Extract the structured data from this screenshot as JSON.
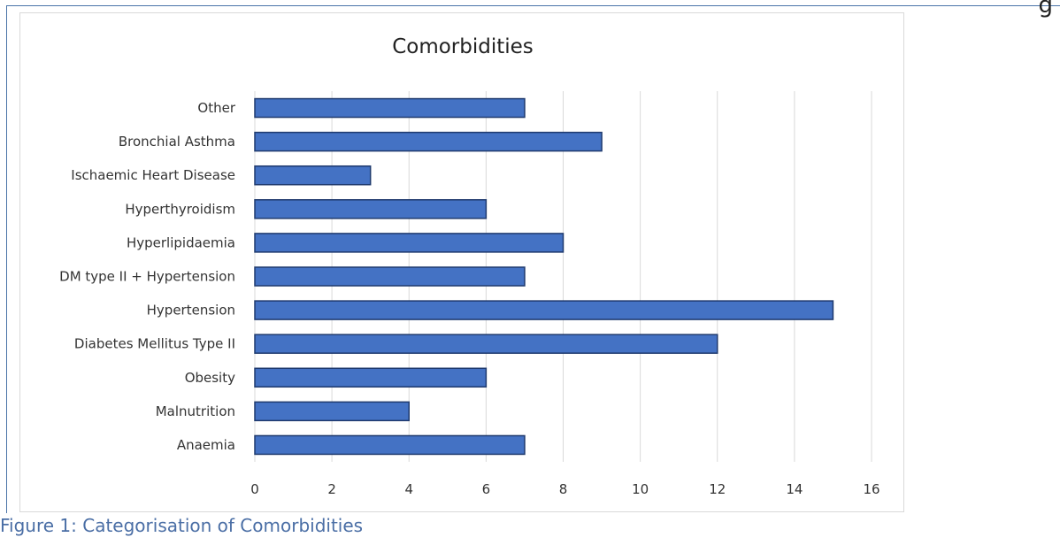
{
  "corner_fragment": "g",
  "caption": "Figure 1: Categorisation of Comorbidities",
  "chart_data": {
    "type": "bar",
    "orientation": "horizontal",
    "title": "Comorbidities",
    "xlabel": "",
    "ylabel": "",
    "categories": [
      "Anaemia",
      "Malnutrition",
      "Obesity",
      "Diabetes Mellitus Type II",
      "Hypertension",
      "DM type II + Hypertension",
      "Hyperlipidaemia",
      "Hyperthyroidism",
      "Ischaemic Heart Disease",
      "Bronchial Asthma",
      "Other"
    ],
    "values": [
      7,
      4,
      6,
      12,
      15,
      7,
      8,
      6,
      3,
      9,
      7
    ],
    "xlim": [
      0,
      16
    ],
    "xticks": [
      0,
      2,
      4,
      6,
      8,
      10,
      12,
      14,
      16
    ],
    "grid": true,
    "legend": "none",
    "bar_color": "#4472c4",
    "bar_edge_color": "#1f3a6e"
  }
}
